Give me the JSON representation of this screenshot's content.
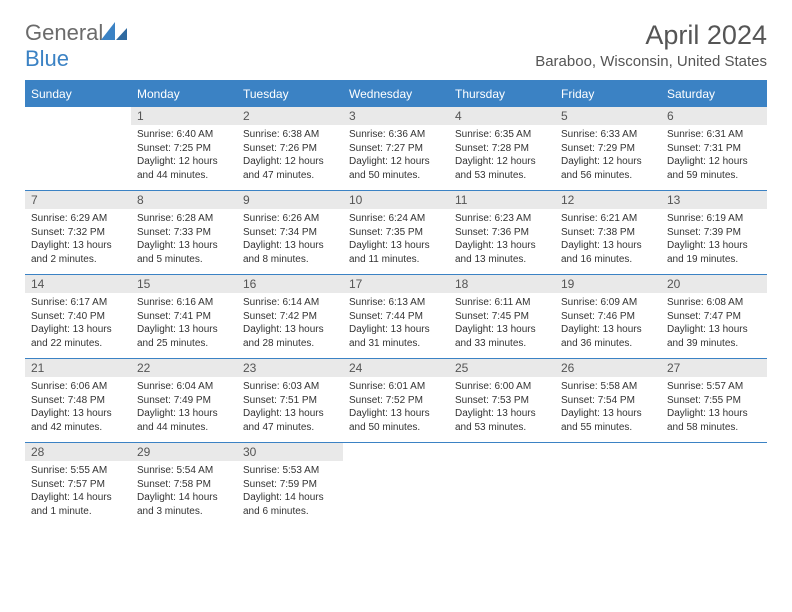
{
  "logo": {
    "text1": "General",
    "text2": "Blue"
  },
  "title": "April 2024",
  "location": "Baraboo, Wisconsin, United States",
  "colors": {
    "header_bg": "#3b82c4",
    "header_fg": "#ffffff",
    "daynum_bg": "#e9e9e9",
    "text": "#333333",
    "title": "#555555",
    "rule": "#3b82c4"
  },
  "weekdays": [
    "Sunday",
    "Monday",
    "Tuesday",
    "Wednesday",
    "Thursday",
    "Friday",
    "Saturday"
  ],
  "start_weekday": 1,
  "days": [
    {
      "n": 1,
      "sunrise": "6:40 AM",
      "sunset": "7:25 PM",
      "daylight": "12 hours and 44 minutes."
    },
    {
      "n": 2,
      "sunrise": "6:38 AM",
      "sunset": "7:26 PM",
      "daylight": "12 hours and 47 minutes."
    },
    {
      "n": 3,
      "sunrise": "6:36 AM",
      "sunset": "7:27 PM",
      "daylight": "12 hours and 50 minutes."
    },
    {
      "n": 4,
      "sunrise": "6:35 AM",
      "sunset": "7:28 PM",
      "daylight": "12 hours and 53 minutes."
    },
    {
      "n": 5,
      "sunrise": "6:33 AM",
      "sunset": "7:29 PM",
      "daylight": "12 hours and 56 minutes."
    },
    {
      "n": 6,
      "sunrise": "6:31 AM",
      "sunset": "7:31 PM",
      "daylight": "12 hours and 59 minutes."
    },
    {
      "n": 7,
      "sunrise": "6:29 AM",
      "sunset": "7:32 PM",
      "daylight": "13 hours and 2 minutes."
    },
    {
      "n": 8,
      "sunrise": "6:28 AM",
      "sunset": "7:33 PM",
      "daylight": "13 hours and 5 minutes."
    },
    {
      "n": 9,
      "sunrise": "6:26 AM",
      "sunset": "7:34 PM",
      "daylight": "13 hours and 8 minutes."
    },
    {
      "n": 10,
      "sunrise": "6:24 AM",
      "sunset": "7:35 PM",
      "daylight": "13 hours and 11 minutes."
    },
    {
      "n": 11,
      "sunrise": "6:23 AM",
      "sunset": "7:36 PM",
      "daylight": "13 hours and 13 minutes."
    },
    {
      "n": 12,
      "sunrise": "6:21 AM",
      "sunset": "7:38 PM",
      "daylight": "13 hours and 16 minutes."
    },
    {
      "n": 13,
      "sunrise": "6:19 AM",
      "sunset": "7:39 PM",
      "daylight": "13 hours and 19 minutes."
    },
    {
      "n": 14,
      "sunrise": "6:17 AM",
      "sunset": "7:40 PM",
      "daylight": "13 hours and 22 minutes."
    },
    {
      "n": 15,
      "sunrise": "6:16 AM",
      "sunset": "7:41 PM",
      "daylight": "13 hours and 25 minutes."
    },
    {
      "n": 16,
      "sunrise": "6:14 AM",
      "sunset": "7:42 PM",
      "daylight": "13 hours and 28 minutes."
    },
    {
      "n": 17,
      "sunrise": "6:13 AM",
      "sunset": "7:44 PM",
      "daylight": "13 hours and 31 minutes."
    },
    {
      "n": 18,
      "sunrise": "6:11 AM",
      "sunset": "7:45 PM",
      "daylight": "13 hours and 33 minutes."
    },
    {
      "n": 19,
      "sunrise": "6:09 AM",
      "sunset": "7:46 PM",
      "daylight": "13 hours and 36 minutes."
    },
    {
      "n": 20,
      "sunrise": "6:08 AM",
      "sunset": "7:47 PM",
      "daylight": "13 hours and 39 minutes."
    },
    {
      "n": 21,
      "sunrise": "6:06 AM",
      "sunset": "7:48 PM",
      "daylight": "13 hours and 42 minutes."
    },
    {
      "n": 22,
      "sunrise": "6:04 AM",
      "sunset": "7:49 PM",
      "daylight": "13 hours and 44 minutes."
    },
    {
      "n": 23,
      "sunrise": "6:03 AM",
      "sunset": "7:51 PM",
      "daylight": "13 hours and 47 minutes."
    },
    {
      "n": 24,
      "sunrise": "6:01 AM",
      "sunset": "7:52 PM",
      "daylight": "13 hours and 50 minutes."
    },
    {
      "n": 25,
      "sunrise": "6:00 AM",
      "sunset": "7:53 PM",
      "daylight": "13 hours and 53 minutes."
    },
    {
      "n": 26,
      "sunrise": "5:58 AM",
      "sunset": "7:54 PM",
      "daylight": "13 hours and 55 minutes."
    },
    {
      "n": 27,
      "sunrise": "5:57 AM",
      "sunset": "7:55 PM",
      "daylight": "13 hours and 58 minutes."
    },
    {
      "n": 28,
      "sunrise": "5:55 AM",
      "sunset": "7:57 PM",
      "daylight": "14 hours and 1 minute."
    },
    {
      "n": 29,
      "sunrise": "5:54 AM",
      "sunset": "7:58 PM",
      "daylight": "14 hours and 3 minutes."
    },
    {
      "n": 30,
      "sunrise": "5:53 AM",
      "sunset": "7:59 PM",
      "daylight": "14 hours and 6 minutes."
    }
  ],
  "labels": {
    "sunrise": "Sunrise:",
    "sunset": "Sunset:",
    "daylight": "Daylight:"
  }
}
